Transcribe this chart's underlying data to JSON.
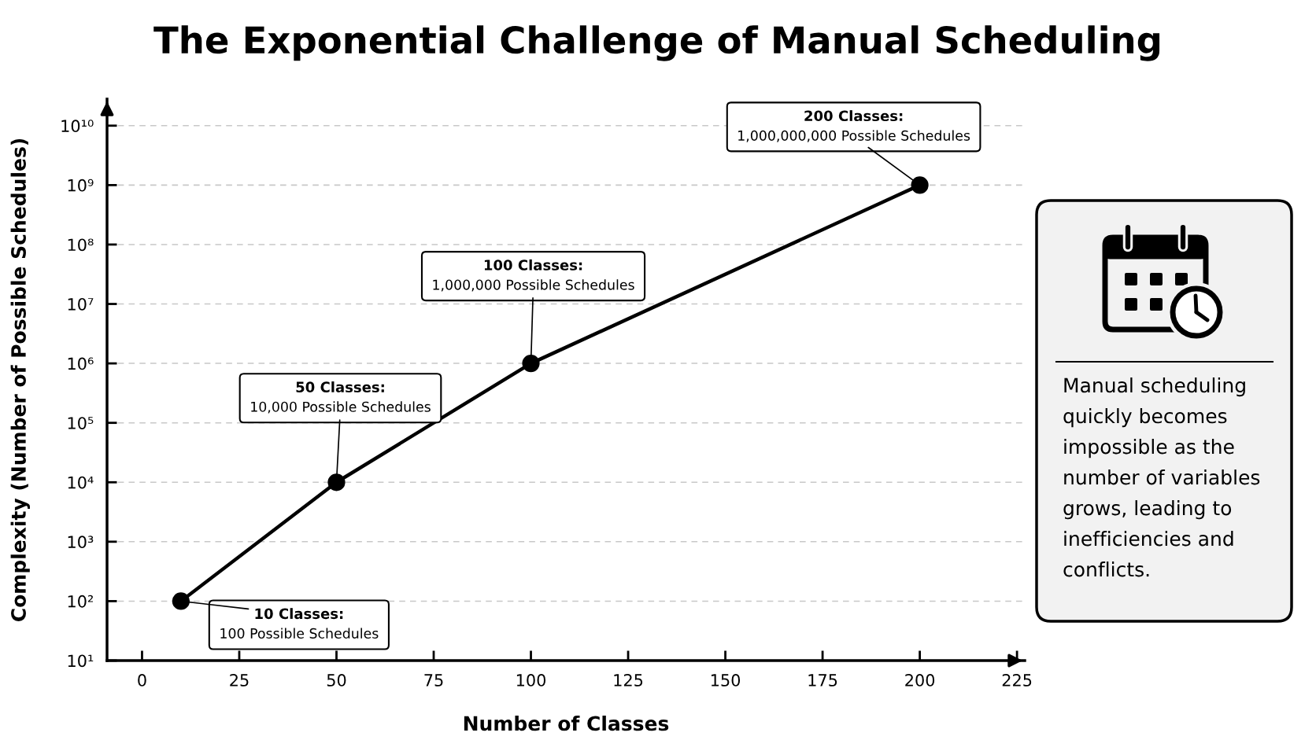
{
  "chart_data": {
    "type": "line",
    "title": "The Exponential Challenge of Manual Scheduling",
    "xlabel": "Number of Classes",
    "ylabel": "Complexity (Number of Possible Schedules)",
    "x": [
      10,
      50,
      100,
      200
    ],
    "values": [
      100,
      10000,
      1000000,
      1000000000
    ],
    "color": "#000000",
    "marker": "circle",
    "line_style": "solid",
    "log": "y",
    "xlim": [
      -9,
      227
    ],
    "ylim": [
      10,
      28000000000
    ],
    "xticks": [
      0,
      25,
      50,
      75,
      100,
      125,
      150,
      175,
      200,
      225
    ],
    "yticks": [
      {
        "value": 10,
        "label": "10¹"
      },
      {
        "value": 100,
        "label": "10²"
      },
      {
        "value": 1000,
        "label": "10³"
      },
      {
        "value": 10000,
        "label": "10⁴"
      },
      {
        "value": 100000,
        "label": "10⁵"
      },
      {
        "value": 1000000,
        "label": "10⁶"
      },
      {
        "value": 10000000,
        "label": "10⁷"
      },
      {
        "value": 100000000,
        "label": "10⁸"
      },
      {
        "value": 1000000000,
        "label": "10⁹"
      },
      {
        "value": 10000000000,
        "label": "10¹⁰"
      }
    ],
    "grid": "y",
    "annotations": [
      {
        "text": "10 Classes:\n100 Possible Schedules",
        "x": 10,
        "y": 100
      },
      {
        "text": "50 Classes:\n10,000 Possible Schedules",
        "x": 50,
        "y": 10000
      },
      {
        "text": "100 Classes:\n1,000,000 Possible Schedules",
        "x": 100,
        "y": 1000000
      },
      {
        "text": "200 Classes:\n1,000,000,000 Possible Schedules",
        "x": 200,
        "y": 1000000000
      },
      "Manual scheduling quickly becomes impossible as the number of variables grows, leading to inefficiencies and conflicts."
    ]
  }
}
